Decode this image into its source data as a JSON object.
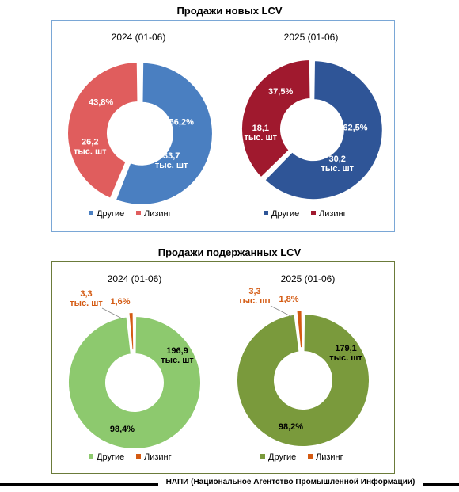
{
  "charts": [
    {
      "title": "Продажи новых LCV",
      "legend": [
        "Другие",
        "Лизинг"
      ],
      "chart_data": [
        {
          "type": "pie",
          "title": "2024 (01-06)",
          "categories": [
            "Другие",
            "Лизинг"
          ],
          "percent": [
            56.2,
            43.8
          ],
          "values": [
            33.7,
            26.2
          ],
          "unit": "тыс. шт",
          "percent_labels": [
            "56,2%",
            "43,8%"
          ],
          "value_labels": [
            "33,7",
            "26,2"
          ],
          "colors": [
            "#4a7fc1",
            "#e05d5d"
          ]
        },
        {
          "type": "pie",
          "title": "2025 (01-06)",
          "categories": [
            "Другие",
            "Лизинг"
          ],
          "percent": [
            62.5,
            37.5
          ],
          "values": [
            30.2,
            18.1
          ],
          "unit": "тыс. шт",
          "percent_labels": [
            "62,5%",
            "37,5%"
          ],
          "value_labels": [
            "30,2",
            "18,1"
          ],
          "colors": [
            "#2f5597",
            "#a0192e"
          ]
        }
      ]
    },
    {
      "title": "Продажи подержанных LCV",
      "legend": [
        "Другие",
        "Лизинг"
      ],
      "chart_data": [
        {
          "type": "pie",
          "title": "2024 (01-06)",
          "categories": [
            "Другие",
            "Лизинг"
          ],
          "percent": [
            98.4,
            1.6
          ],
          "values": [
            196.9,
            3.3
          ],
          "unit": "тыс. шт",
          "percent_labels": [
            "98,4%",
            "1,6%"
          ],
          "value_labels": [
            "196,9",
            "3,3"
          ],
          "colors": [
            "#8dc96e",
            "#d45a12"
          ]
        },
        {
          "type": "pie",
          "title": "2025 (01-06)",
          "categories": [
            "Другие",
            "Лизинг"
          ],
          "percent": [
            98.2,
            1.8
          ],
          "values": [
            179.1,
            3.3
          ],
          "unit": "тыс. шт",
          "percent_labels": [
            "98,2%",
            "1,8%"
          ],
          "value_labels": [
            "179,1",
            "3,3"
          ],
          "colors": [
            "#7a9a3c",
            "#d45a12"
          ]
        }
      ]
    }
  ],
  "footer": "НАПИ (Национальное Агентство Промышленной Информации)"
}
